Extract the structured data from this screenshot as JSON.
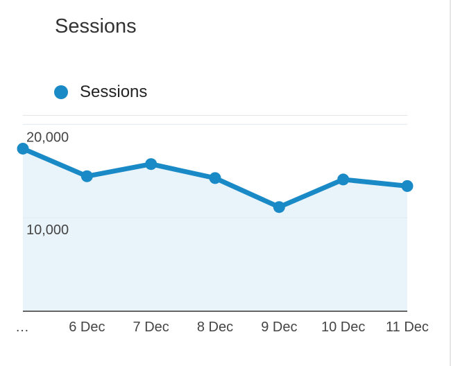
{
  "title": "Sessions",
  "legend": {
    "label": "Sessions",
    "color": "#1a8ac6"
  },
  "chart_data": {
    "type": "area",
    "title": "Sessions",
    "xlabel": "",
    "ylabel": "",
    "categories": [
      "…",
      "6 Dec",
      "7 Dec",
      "8 Dec",
      "9 Dec",
      "10 Dec",
      "11 Dec"
    ],
    "series": [
      {
        "name": "Sessions",
        "values": [
          17400,
          14450,
          15750,
          14250,
          11150,
          14100,
          13400
        ]
      }
    ],
    "yticks": [
      {
        "value": 10000,
        "label": "10,000"
      },
      {
        "value": 20000,
        "label": "20,000"
      }
    ],
    "ylim": [
      0,
      21000
    ],
    "grid": true,
    "legend_position": "top-left",
    "line_color": "#1a8ac6",
    "fill_color": "#e8f3fa"
  }
}
